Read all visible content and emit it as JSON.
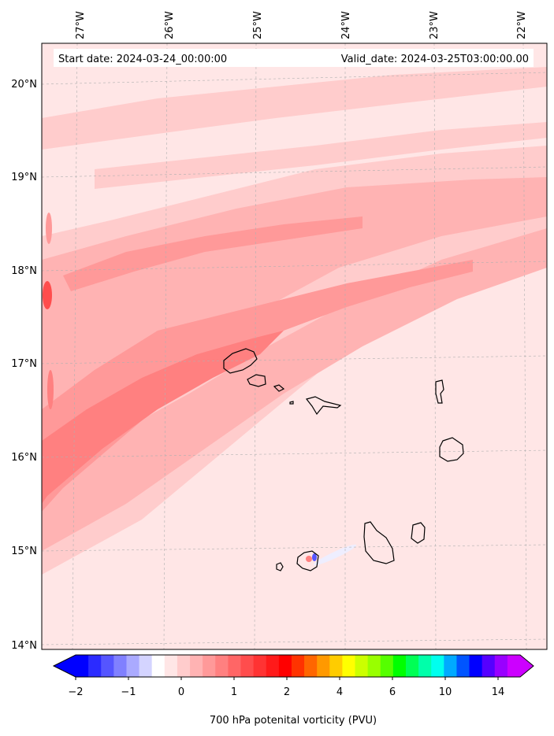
{
  "map": {
    "start_date_text": "Start date: 2024-03-24_00:00:00",
    "valid_date_text": "Valid_date: 2024-03-25T03:00:00.00",
    "lat_labels": [
      "20°N",
      "19°N",
      "18°N",
      "17°N",
      "16°N",
      "15°N",
      "14°N"
    ],
    "lon_labels": [
      "27°W",
      "26°W",
      "25°W",
      "24°W",
      "23°W",
      "22°W"
    ],
    "land_outline_color": "#000000",
    "gridline_color": "#b0b0b0"
  },
  "colorbar": {
    "title": "700 hPa potenital vorticity (PVU)",
    "tick_labels": [
      "−2",
      "−1",
      "0",
      "1",
      "2",
      "4",
      "6",
      "10",
      "14"
    ],
    "colors": [
      "#0000ff",
      "#2b2bff",
      "#5555ff",
      "#8080ff",
      "#aaaaff",
      "#d4d4ff",
      "#ffffff",
      "#ffe6e6",
      "#ffcccc",
      "#ffb3b3",
      "#ff9999",
      "#ff8080",
      "#ff6666",
      "#ff4d4d",
      "#ff3333",
      "#ff1a1a",
      "#ff0000",
      "#ff3300",
      "#ff6600",
      "#ff9900",
      "#ffcc00",
      "#ffff00",
      "#ccff00",
      "#99ff00",
      "#55ff00",
      "#00ff00",
      "#00ff55",
      "#00ffaa",
      "#00ffee",
      "#00aaff",
      "#0055ff",
      "#0000ff",
      "#5500ff",
      "#9900ff",
      "#cc00ff"
    ]
  },
  "chart_data": {
    "type": "heatmap",
    "variable": "700 hPa potenital vorticity (PVU)",
    "lat_range": [
      14,
      20
    ],
    "lon_range": [
      -27,
      -22
    ],
    "colorbar_ticks": [
      -2,
      -1,
      0,
      1,
      2,
      4,
      6,
      10,
      14
    ],
    "colorbar_extend": "both"
  }
}
